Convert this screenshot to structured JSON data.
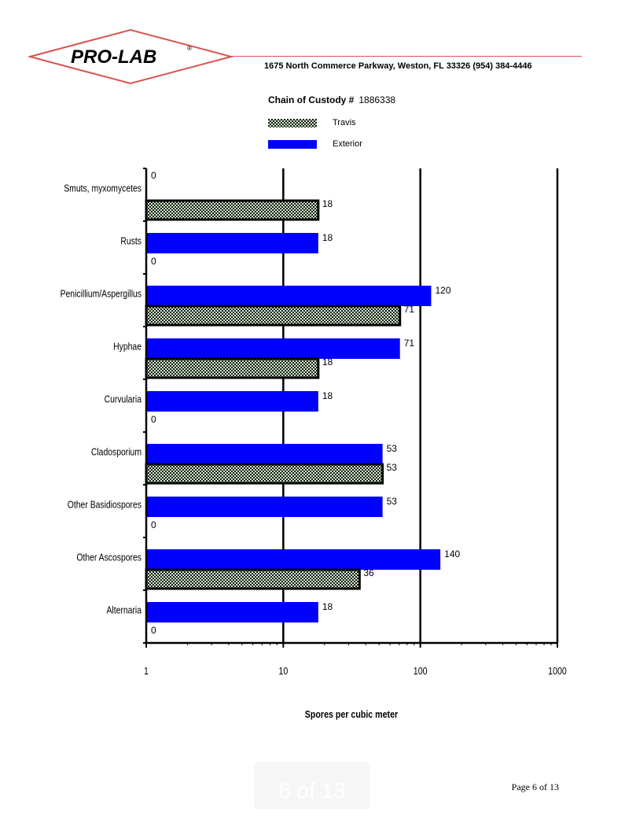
{
  "header": {
    "logo_text": "PRO-LAB",
    "logo_mark": "®",
    "address": "1675 North Commerce Parkway, Weston, FL  33326     (954) 384-4446",
    "chain_label": "Chain of Custody #",
    "chain_value": "1886338"
  },
  "colors": {
    "brand_red": "#d9534f",
    "exterior": "#0000ff",
    "travis_fill": "#cfe9c8",
    "travis_check": "#1a1a1a"
  },
  "chart_data": {
    "type": "bar",
    "orientation": "horizontal",
    "xscale": "log",
    "xlim": [
      1,
      1000
    ],
    "xticks": [
      "1",
      "10",
      "100",
      "1000"
    ],
    "xlabel": "Spores per cubic meter",
    "ylabel": "",
    "grid": "vertical",
    "categories": [
      "Smuts, myxomycetes",
      "Rusts",
      "Penicillium/Aspergillus",
      "Hyphae",
      "Curvularia",
      "Cladosporium",
      "Other Basidiospores",
      "Other Ascospores",
      "Alternaria"
    ],
    "series": [
      {
        "name": "Travis",
        "values": [
          18,
          0,
          71,
          18,
          0,
          53,
          0,
          36,
          0
        ]
      },
      {
        "name": "Exterior",
        "values": [
          0,
          18,
          120,
          71,
          18,
          53,
          53,
          140,
          18
        ]
      }
    ],
    "legend": "top"
  },
  "footer": {
    "page": "Page 6 of 13",
    "pager": "6 of 13"
  }
}
